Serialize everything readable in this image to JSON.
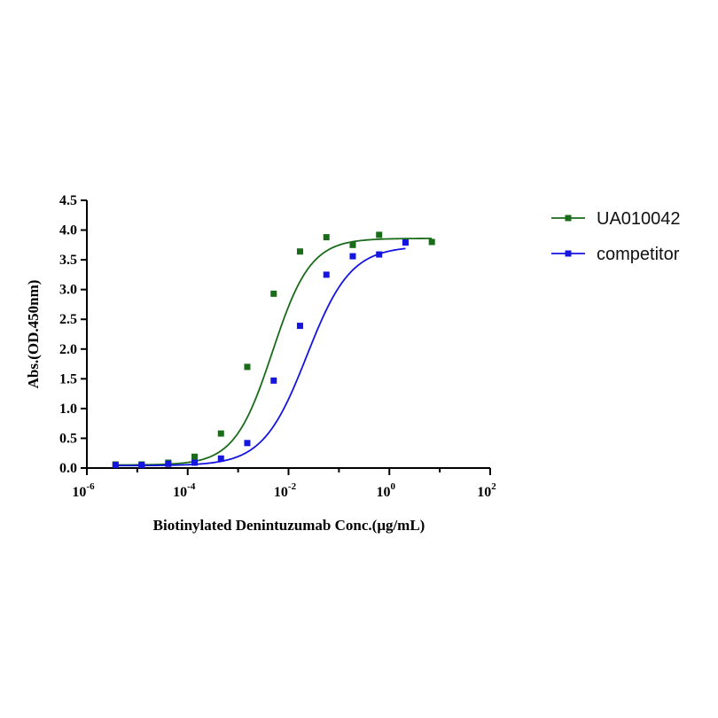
{
  "chart_data": {
    "type": "scatter",
    "xlabel": "Biotinylated Denintuzumab Conc.(μg/mL)",
    "ylabel": "Abs.(OD.450nm)",
    "x_scale": "log10",
    "xlim": [
      1e-06,
      100
    ],
    "ylim": [
      0,
      4.5
    ],
    "x_ticks": [
      {
        "base": "10",
        "exp": "-6",
        "value": 1e-06
      },
      {
        "base": "10",
        "exp": "-4",
        "value": 0.0001
      },
      {
        "base": "10",
        "exp": "-2",
        "value": 0.01
      },
      {
        "base": "10",
        "exp": "0",
        "value": 1
      },
      {
        "base": "10",
        "exp": "2",
        "value": 100
      }
    ],
    "y_ticks": [
      "0.0",
      "0.5",
      "1.0",
      "1.5",
      "2.0",
      "2.5",
      "3.0",
      "3.5",
      "4.0",
      "4.5"
    ],
    "legend_position": "right",
    "grid": false,
    "series": [
      {
        "name": "UA010042",
        "color": "#1a6b1a",
        "marker": "square",
        "x": [
          3.7e-06,
          1.22e-05,
          4.12e-05,
          0.000137,
          0.000457,
          0.00152,
          0.00508,
          0.0169,
          0.0564,
          0.188,
          0.627,
          2.09,
          6.97
        ],
        "y": [
          0.06,
          0.06,
          0.09,
          0.19,
          0.58,
          1.7,
          2.93,
          3.64,
          3.88,
          3.75,
          3.92,
          3.8,
          3.8
        ],
        "fit": {
          "bottom": 0.05,
          "top": 3.86,
          "ec50": 0.0048,
          "hill": 1.15
        }
      },
      {
        "name": "competitor",
        "color": "#1515e0",
        "marker": "square",
        "x": [
          3.7e-06,
          1.22e-05,
          4.12e-05,
          0.000137,
          0.000457,
          0.00152,
          0.00508,
          0.0169,
          0.0564,
          0.188,
          0.627,
          2.09
        ],
        "y": [
          0.05,
          0.05,
          0.07,
          0.09,
          0.16,
          0.42,
          1.47,
          2.39,
          3.25,
          3.56,
          3.59,
          3.79
        ],
        "fit": {
          "bottom": 0.04,
          "top": 3.73,
          "ec50": 0.023,
          "hill": 1.0
        }
      }
    ]
  }
}
